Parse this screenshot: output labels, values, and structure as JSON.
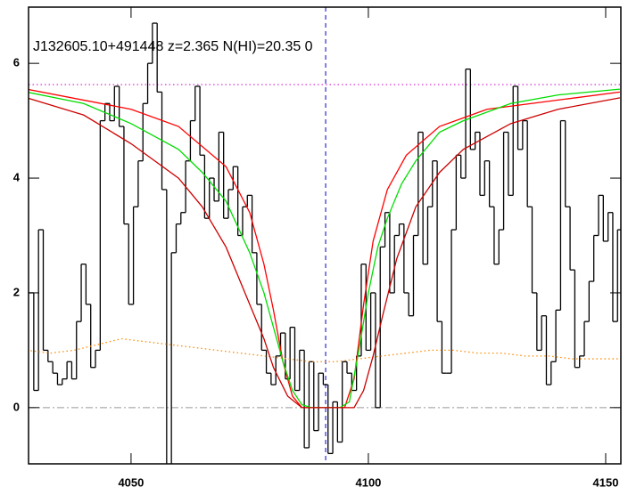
{
  "chart_data": {
    "type": "line",
    "annotation": "J132605.10+491448 z=2.365 N(HI)=20.35 0",
    "xlim": [
      4028.4,
      4153.2
    ],
    "ylim": [
      -0.98,
      6.98
    ],
    "xticks": [
      4050,
      4100,
      4150
    ],
    "yticks": [
      0,
      2,
      4,
      6
    ],
    "series": [
      {
        "style": "step",
        "color": "#000000",
        "x": [
          4029,
          4030,
          4031,
          4032,
          4033,
          4034,
          4035,
          4036,
          4037,
          4038,
          4039,
          4040,
          4041,
          4042,
          4043,
          4044,
          4045,
          4046,
          4047,
          4048,
          4049,
          4050,
          4051,
          4052,
          4053,
          4054,
          4055,
          4056,
          4057,
          4058,
          4059,
          4060,
          4061,
          4062,
          4063,
          4064,
          4065,
          4066,
          4067,
          4068,
          4069,
          4070,
          4071,
          4072,
          4073,
          4074,
          4075,
          4076,
          4077,
          4078,
          4079,
          4080,
          4081,
          4082,
          4083,
          4084,
          4085,
          4086,
          4087,
          4088,
          4089,
          4090,
          4091,
          4092,
          4093,
          4094,
          4095,
          4096,
          4097,
          4098,
          4099,
          4100,
          4101,
          4102,
          4103,
          4104,
          4105,
          4106,
          4107,
          4108,
          4109,
          4110,
          4111,
          4112,
          4113,
          4114,
          4115,
          4116,
          4117,
          4118,
          4119,
          4120,
          4121,
          4122,
          4123,
          4124,
          4125,
          4126,
          4127,
          4128,
          4129,
          4130,
          4131,
          4132,
          4133,
          4134,
          4135,
          4136,
          4137,
          4138,
          4139,
          4140,
          4141,
          4142,
          4143,
          4144,
          4145,
          4146,
          4147,
          4148,
          4149,
          4150,
          4151,
          4152,
          4153
        ],
        "values": [
          2.0,
          0.3,
          3.1,
          1.0,
          0.8,
          0.6,
          0.4,
          0.5,
          0.8,
          0.5,
          1.5,
          2.5,
          1.8,
          0.7,
          1.0,
          5.0,
          5.3,
          5.0,
          5.6,
          4.9,
          3.2,
          1.8,
          3.5,
          4.3,
          5.3,
          6.0,
          6.7,
          5.5,
          3.8,
          -1.0,
          2.7,
          3.2,
          3.4,
          4.3,
          5.0,
          5.6,
          4.4,
          3.3,
          4.0,
          3.6,
          4.8,
          3.3,
          3.8,
          4.2,
          3.0,
          3.5,
          3.7,
          2.7,
          1.8,
          1.0,
          0.6,
          0.4,
          0.9,
          1.3,
          0.5,
          1.4,
          0.3,
          1.0,
          -0.7,
          0.8,
          -0.4,
          0.6,
          0.4,
          -0.8,
          0.1,
          -0.6,
          0.8,
          0.6,
          0.3,
          0.9,
          2.5,
          1.0,
          2.0,
          0.0,
          2.8,
          3.4,
          2.0,
          3.0,
          3.2,
          2.0,
          1.6,
          3.0,
          4.8,
          2.5,
          3.5,
          4.3,
          1.5,
          0.6,
          0.6,
          3.1,
          4.4,
          4.0,
          5.9,
          4.5,
          4.8,
          3.7,
          4.3,
          3.5,
          2.5,
          3.1,
          4.8,
          3.7,
          5.6,
          4.5,
          5.0,
          3.5,
          2.0,
          1.0,
          1.6,
          0.4,
          0.8,
          1.7,
          5.0,
          3.5,
          2.4,
          0.7,
          0.9,
          1.5,
          2.2,
          3.0,
          3.7,
          2.9,
          3.4,
          1.5,
          3.1
        ]
      },
      {
        "style": "dotted",
        "color": "#ff8c00",
        "x": [
          4028,
          4033,
          4038,
          4043,
          4048,
          4053,
          4058,
          4063,
          4068,
          4073,
          4078,
          4083,
          4088,
          4093,
          4098,
          4103,
          4108,
          4113,
          4118,
          4123,
          4128,
          4133,
          4138,
          4143,
          4148,
          4153
        ],
        "values": [
          1.0,
          0.95,
          1.0,
          1.1,
          1.2,
          1.15,
          1.1,
          1.05,
          1.0,
          0.95,
          0.9,
          0.85,
          0.8,
          0.8,
          0.85,
          0.9,
          0.95,
          1.0,
          1.0,
          0.95,
          0.95,
          0.9,
          0.9,
          0.85,
          0.85,
          0.85
        ]
      },
      {
        "style": "solid",
        "color": "#ff0000",
        "x": [
          4028,
          4050,
          4060,
          4070,
          4075,
          4078,
          4080,
          4082,
          4084,
          4086,
          4095,
          4097,
          4099,
          4101,
          4104,
          4108,
          4115,
          4125,
          4153
        ],
        "values": [
          5.55,
          5.2,
          4.9,
          4.2,
          3.4,
          2.5,
          1.7,
          0.8,
          0.2,
          0,
          0,
          0.5,
          1.8,
          2.9,
          3.8,
          4.4,
          4.9,
          5.2,
          5.5
        ]
      },
      {
        "style": "solid",
        "color": "#00dd00",
        "x": [
          4028,
          4040,
          4050,
          4060,
          4065,
          4070,
          4075,
          4078,
          4080,
          4082,
          4084,
          4086,
          4088,
          4094,
          4096,
          4098,
          4100,
          4102,
          4104,
          4107,
          4110,
          4115,
          4120,
          4130,
          4140,
          4153
        ],
        "values": [
          5.5,
          5.3,
          4.95,
          4.5,
          4.1,
          3.6,
          2.7,
          2.0,
          1.4,
          0.8,
          0.3,
          0.05,
          0,
          0,
          0.1,
          1.0,
          2.0,
          2.8,
          3.3,
          3.9,
          4.3,
          4.8,
          5.0,
          5.3,
          5.45,
          5.55
        ]
      },
      {
        "style": "solid",
        "color": "#cc0000",
        "x": [
          4028,
          4040,
          4050,
          4060,
          4065,
          4070,
          4075,
          4078,
          4080,
          4083,
          4086,
          4097,
          4099,
          4101,
          4103,
          4106,
          4110,
          4115,
          4120,
          4130,
          4140,
          4153
        ],
        "values": [
          5.4,
          5.1,
          4.6,
          4.0,
          3.5,
          2.8,
          1.8,
          1.2,
          0.7,
          0.2,
          0,
          0,
          0.3,
          0.9,
          1.6,
          2.6,
          3.5,
          4.1,
          4.5,
          4.95,
          5.2,
          5.4
        ]
      }
    ],
    "hlines": [
      {
        "value": 5.63,
        "color": "#cc00cc",
        "style": "dotted"
      },
      {
        "value": 0,
        "color": "#999999",
        "style": "dashdot"
      }
    ],
    "vlines": [
      {
        "value": 4091,
        "color": "#0000cc",
        "style": "dashed"
      }
    ]
  }
}
